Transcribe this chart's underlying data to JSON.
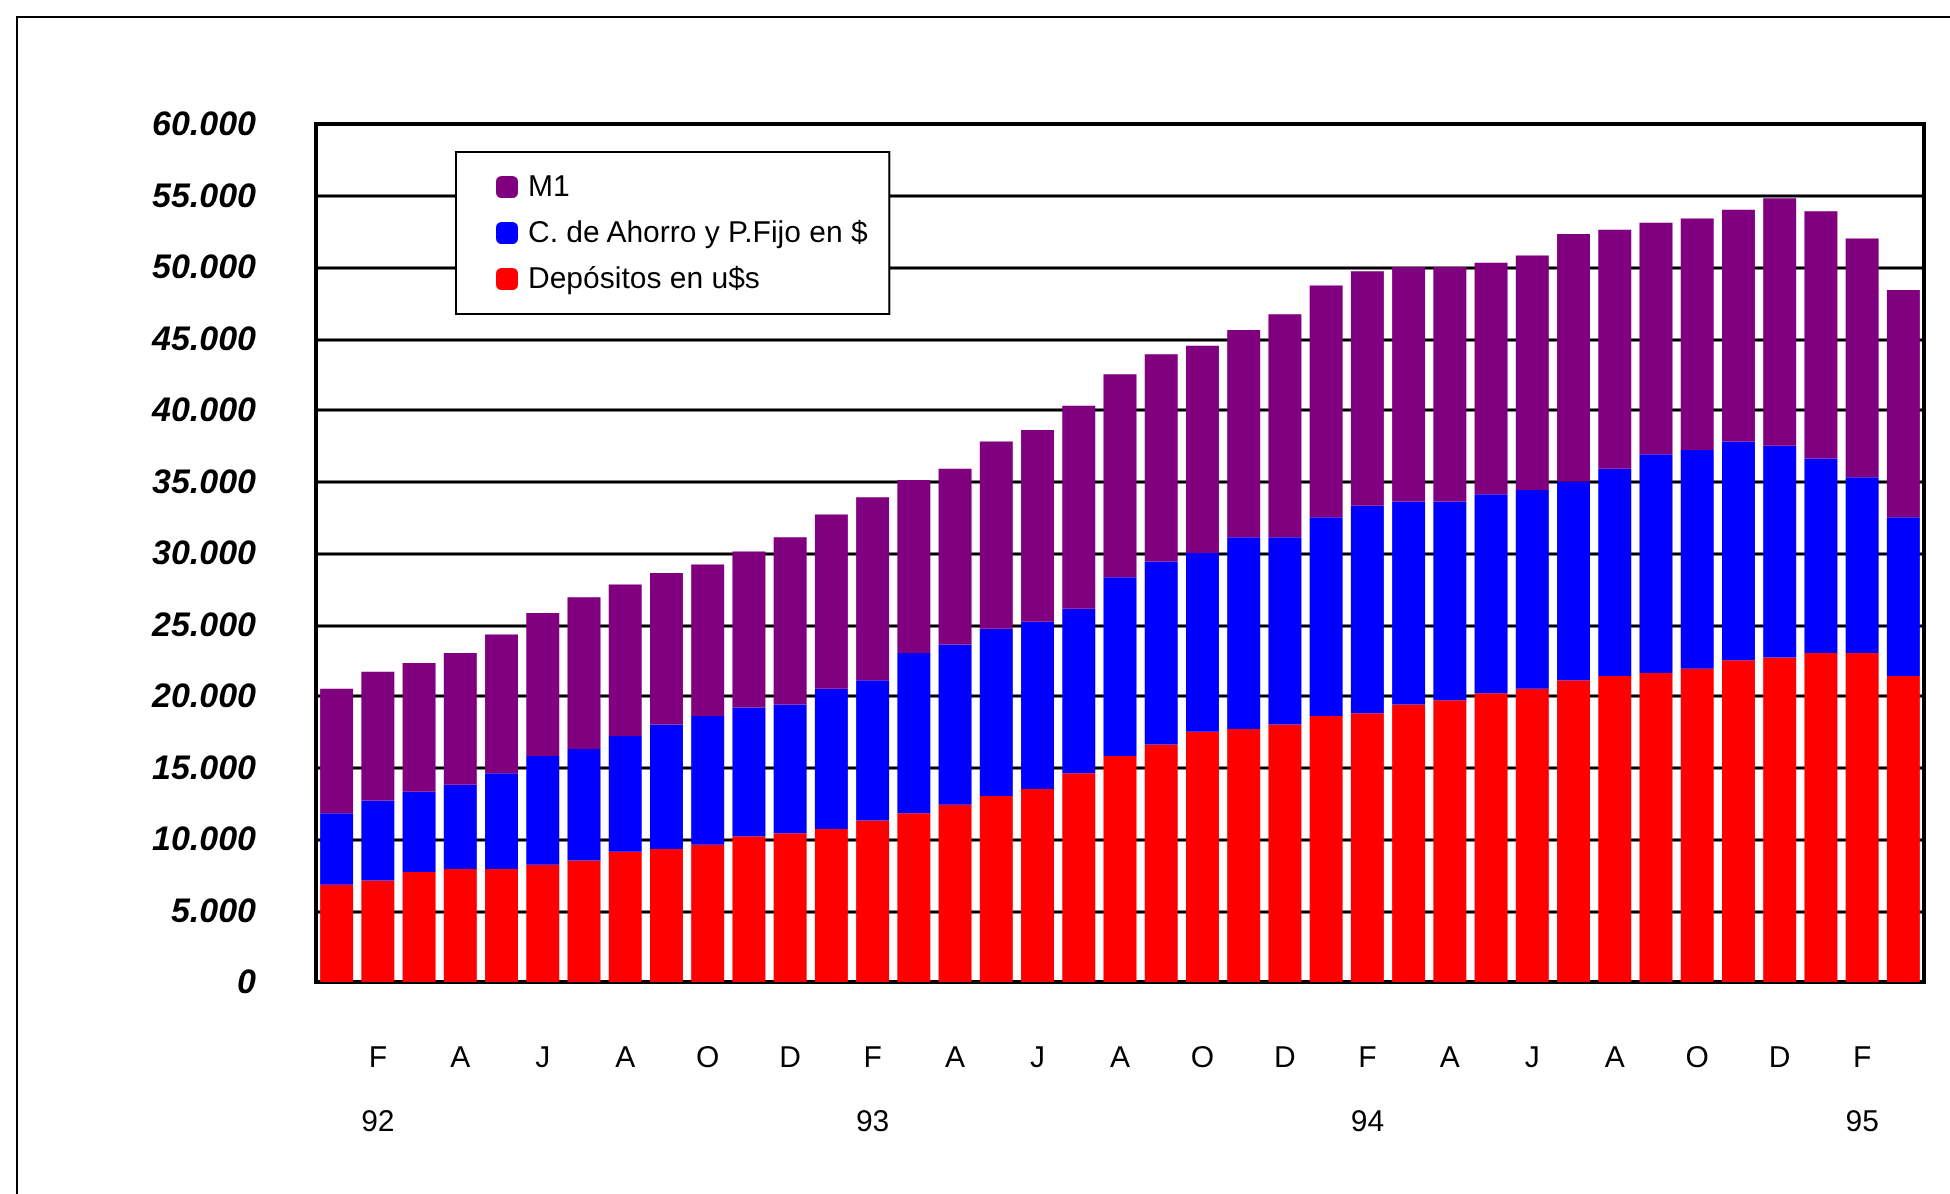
{
  "chart_data": {
    "type": "bar",
    "stacked": true,
    "categories": [
      null,
      "F\n92",
      null,
      "A",
      null,
      "J",
      null,
      "A",
      null,
      "O",
      null,
      "D",
      null,
      "F\n93",
      null,
      "A",
      null,
      "J",
      null,
      "A",
      null,
      "O",
      null,
      "D",
      null,
      "F\n94",
      null,
      "A",
      null,
      "J",
      null,
      "A",
      null,
      "O",
      null,
      "D",
      null,
      "F\n95",
      null
    ],
    "series": [
      {
        "name": "Depósitos en u$s",
        "color": "#ff0000",
        "values": [
          6800,
          7100,
          7700,
          7900,
          7900,
          8200,
          8500,
          9100,
          9300,
          9600,
          10200,
          10400,
          10700,
          11300,
          11800,
          12400,
          13000,
          13500,
          14600,
          15800,
          16600,
          17500,
          17700,
          18000,
          18600,
          18800,
          19400,
          19700,
          20200,
          20500,
          21100,
          21400,
          21600,
          21900,
          22500,
          22700,
          23000,
          23000,
          21400
        ]
      },
      {
        "name": "C. de Ahorro y P.Fijo en $",
        "color": "#0000ff",
        "values": [
          5000,
          5600,
          5600,
          5900,
          6700,
          7600,
          7800,
          8100,
          8700,
          9000,
          9000,
          9000,
          9800,
          9800,
          11200,
          11200,
          11700,
          11700,
          11500,
          12500,
          12800,
          12500,
          13400,
          13100,
          13900,
          14500,
          14200,
          13900,
          13900,
          13900,
          13900,
          14500,
          15300,
          15300,
          15300,
          14800,
          13600,
          12300,
          11100
        ]
      },
      {
        "name": "M1",
        "color": "#800080",
        "values": [
          8700,
          9000,
          9000,
          9200,
          9700,
          10000,
          10600,
          10600,
          10600,
          10600,
          10900,
          11700,
          12200,
          12800,
          12100,
          12300,
          13100,
          13400,
          14200,
          14200,
          14500,
          14500,
          14500,
          15600,
          16200,
          16400,
          16400,
          16400,
          16200,
          16400,
          17300,
          16700,
          16200,
          16200,
          16200,
          17300,
          17300,
          16700,
          15900
        ]
      }
    ],
    "ylim": [
      0,
      60000
    ],
    "yticks": [
      {
        "value": 0,
        "label": "0"
      },
      {
        "value": 5000,
        "label": "5.000"
      },
      {
        "value": 10000,
        "label": "10.000"
      },
      {
        "value": 15000,
        "label": "15.000"
      },
      {
        "value": 20000,
        "label": "20.000"
      },
      {
        "value": 25000,
        "label": "25.000"
      },
      {
        "value": 30000,
        "label": "30.000"
      },
      {
        "value": 35000,
        "label": "35.000"
      },
      {
        "value": 40000,
        "label": "40.000"
      },
      {
        "value": 45000,
        "label": "45.000"
      },
      {
        "value": 50000,
        "label": "50.000"
      },
      {
        "value": 55000,
        "label": "55.000"
      },
      {
        "value": 60000,
        "label": "60.000"
      }
    ],
    "grid": "y",
    "legend": "top left"
  }
}
